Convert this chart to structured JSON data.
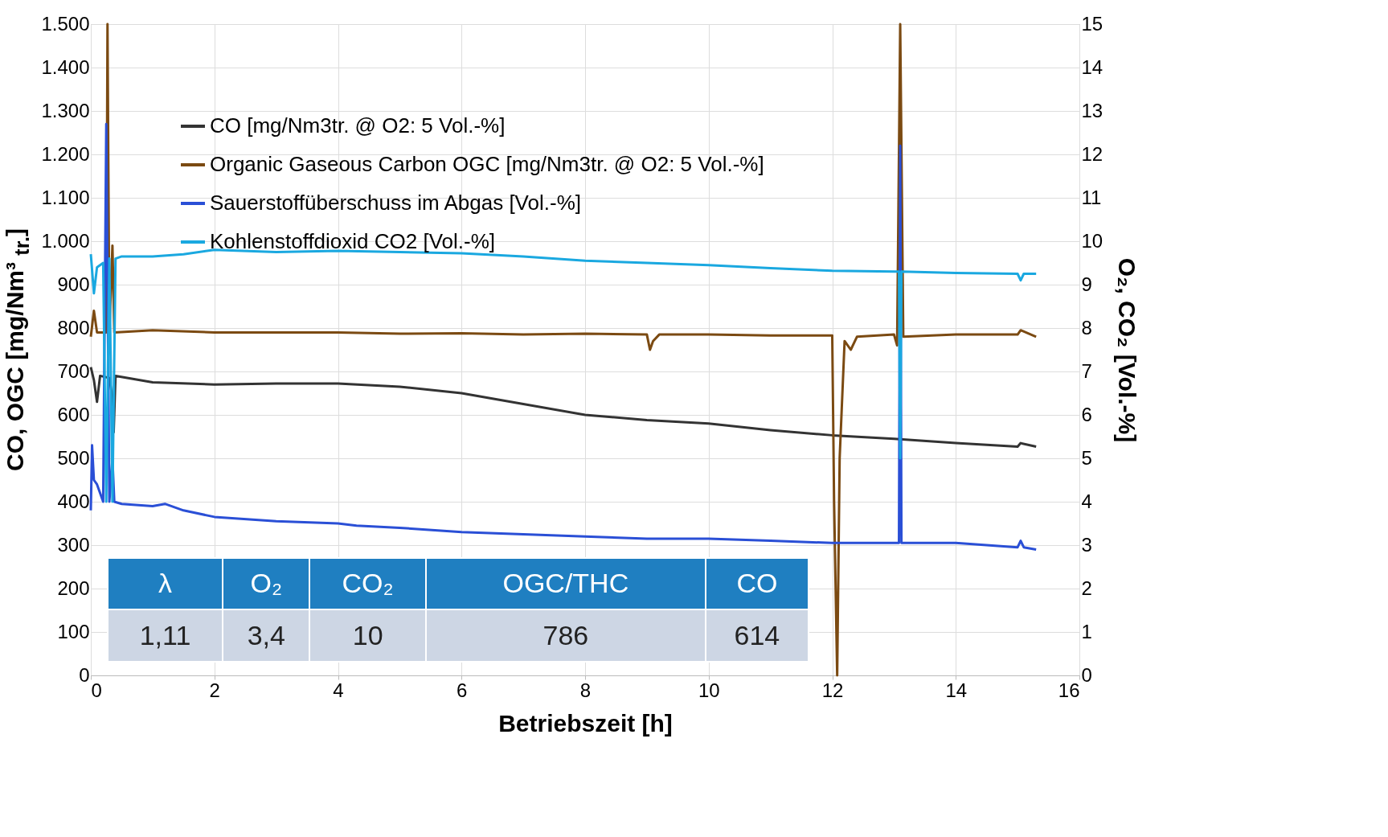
{
  "chart_data": {
    "type": "line",
    "xlabel": "Betriebszeit [h]",
    "ylabel": "CO, OGC [mg/Nm³ $_{tr.}$]",
    "y2label": "O₂, CO₂ [Vol.-%]",
    "xlim": [
      0,
      16
    ],
    "xticks": [
      0,
      2,
      4,
      6,
      8,
      10,
      12,
      14,
      16
    ],
    "ylim": [
      0,
      1500
    ],
    "yticks": [
      0,
      100,
      200,
      300,
      400,
      500,
      600,
      700,
      800,
      900,
      {
        "value": 1000,
        "label": "1.000"
      },
      {
        "value": 1100,
        "label": "1.100"
      },
      {
        "value": 1200,
        "label": "1.200"
      },
      {
        "value": 1300,
        "label": "1.300"
      },
      {
        "value": 1400,
        "label": "1.400"
      },
      {
        "value": 1500,
        "label": "1.500"
      }
    ],
    "y2lim": [
      0,
      15
    ],
    "y2ticks": [
      0,
      1,
      2,
      3,
      4,
      5,
      6,
      7,
      8,
      9,
      10,
      11,
      12,
      13,
      14,
      15
    ],
    "grid": true,
    "legend": "top left",
    "series": [
      {
        "name": "CO [mg/Nm3tr. @ O2: 5 Vol.-%]",
        "color": "#333333",
        "x": [
          0,
          0.05,
          0.1,
          0.15,
          0.3,
          0.35,
          0.37,
          0.4,
          1,
          2,
          3,
          4,
          5,
          6,
          7,
          8,
          9,
          10,
          11,
          12,
          13,
          14,
          15,
          15.05,
          15.3
        ],
        "values": [
          710,
          680,
          630,
          690,
          685,
          640,
          560,
          690,
          675,
          670,
          672,
          672,
          665,
          650,
          625,
          600,
          588,
          580,
          565,
          553,
          545,
          535,
          527,
          535,
          527
        ]
      },
      {
        "name": "Organic Gaseous Carbon OGC [mg/Nm3tr. @ O2: 5 Vol.-%]",
        "color": "#7b4a12",
        "x": [
          0,
          0.05,
          0.1,
          0.25,
          0.27,
          0.3,
          0.35,
          0.38,
          1,
          2,
          3,
          4,
          5,
          6,
          7,
          8,
          9,
          9.05,
          9.1,
          9.2,
          10,
          11,
          12,
          12.03,
          12.08,
          12.12,
          12.2,
          12.3,
          12.4,
          13,
          13.05,
          13.1,
          13.15,
          14,
          15,
          15.05,
          15.3
        ],
        "values": [
          780,
          840,
          790,
          790,
          1500,
          790,
          990,
          790,
          795,
          790,
          790,
          790,
          787,
          788,
          785,
          787,
          785,
          750,
          770,
          785,
          785,
          783,
          783,
          400,
          0,
          500,
          770,
          750,
          780,
          785,
          760,
          1500,
          780,
          785,
          785,
          795,
          780
        ]
      },
      {
        "name": "Sauerstoffüberschuss im Abgas [Vol.-%]",
        "color": "#2a4fd6",
        "axis": "y2",
        "x": [
          0,
          0.02,
          0.05,
          0.1,
          0.2,
          0.25,
          0.3,
          0.35,
          0.38,
          0.5,
          1,
          1.2,
          1.5,
          2,
          3,
          4,
          4.3,
          5,
          6,
          7,
          8,
          9,
          10,
          11,
          12,
          13,
          13.08,
          13.1,
          13.12,
          14,
          15,
          15.05,
          15.1,
          15.3
        ],
        "values": [
          3.8,
          5.3,
          4.5,
          4.4,
          4.0,
          12.7,
          4.0,
          5.0,
          4.0,
          3.95,
          3.9,
          3.95,
          3.8,
          3.65,
          3.55,
          3.5,
          3.45,
          3.4,
          3.3,
          3.25,
          3.2,
          3.15,
          3.15,
          3.1,
          3.05,
          3.05,
          3.05,
          12.2,
          3.05,
          3.05,
          2.95,
          3.1,
          2.95,
          2.9
        ]
      },
      {
        "name": "Kohlenstoffdioxid CO2  [Vol.-%]",
        "color": "#1aa8e0",
        "axis": "y2",
        "x": [
          0,
          0.05,
          0.1,
          0.2,
          0.25,
          0.3,
          0.35,
          0.4,
          0.5,
          1,
          1.5,
          2,
          3,
          4,
          5,
          6,
          7,
          8,
          9,
          10,
          11,
          12,
          13,
          13.08,
          13.1,
          13.12,
          14,
          15,
          15.05,
          15.1,
          15.3
        ],
        "values": [
          9.7,
          8.8,
          9.4,
          9.5,
          4.0,
          9.6,
          4.0,
          9.6,
          9.65,
          9.65,
          9.7,
          9.8,
          9.75,
          9.78,
          9.75,
          9.72,
          9.65,
          9.55,
          9.5,
          9.45,
          9.38,
          9.32,
          9.3,
          9.3,
          5.0,
          9.3,
          9.27,
          9.25,
          9.1,
          9.25,
          9.25
        ]
      }
    ],
    "annotations": [
      "λ",
      "O₂",
      "CO₂",
      "OGC/THC",
      "CO",
      "1,11",
      "3,4",
      "10",
      "786",
      "614"
    ]
  }
}
